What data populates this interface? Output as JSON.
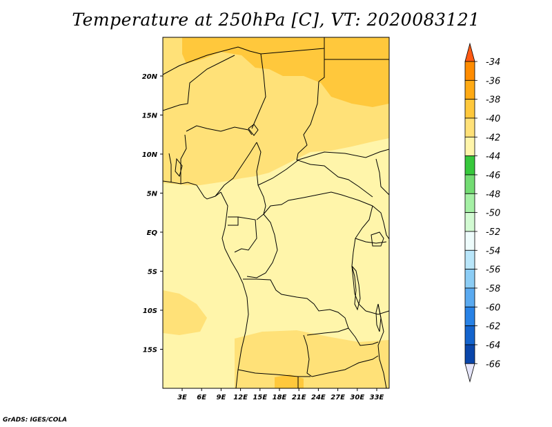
{
  "title": "Temperature at 250hPa [C], VT: 2020083121",
  "credit": "GrADS: IGES/COLA",
  "map": {
    "lat_ticks": [
      "20N",
      "15N",
      "10N",
      "5N",
      "EQ",
      "5S",
      "10S",
      "15S"
    ],
    "lon_ticks": [
      "3E",
      "6E",
      "9E",
      "12E",
      "15E",
      "18E",
      "21E",
      "24E",
      "27E",
      "30E",
      "33E"
    ]
  },
  "colorbar": {
    "levels": [
      "-34",
      "-36",
      "-38",
      "-40",
      "-42",
      "-44",
      "-46",
      "-48",
      "-50",
      "-52",
      "-54",
      "-56",
      "-58",
      "-60",
      "-62",
      "-64",
      "-66"
    ],
    "colors": [
      "#ff5a14",
      "#ff8c00",
      "#ffaa14",
      "#ffc83c",
      "#ffe178",
      "#fff5aa",
      "#37c83c",
      "#73dc73",
      "#a5f0a5",
      "#d2fad2",
      "#eefcfc",
      "#b9e6fa",
      "#8ccdf5",
      "#5aaaf0",
      "#2882e6",
      "#1464cd",
      "#0a46aa",
      "#00157a",
      "#e6e6fa"
    ]
  }
}
